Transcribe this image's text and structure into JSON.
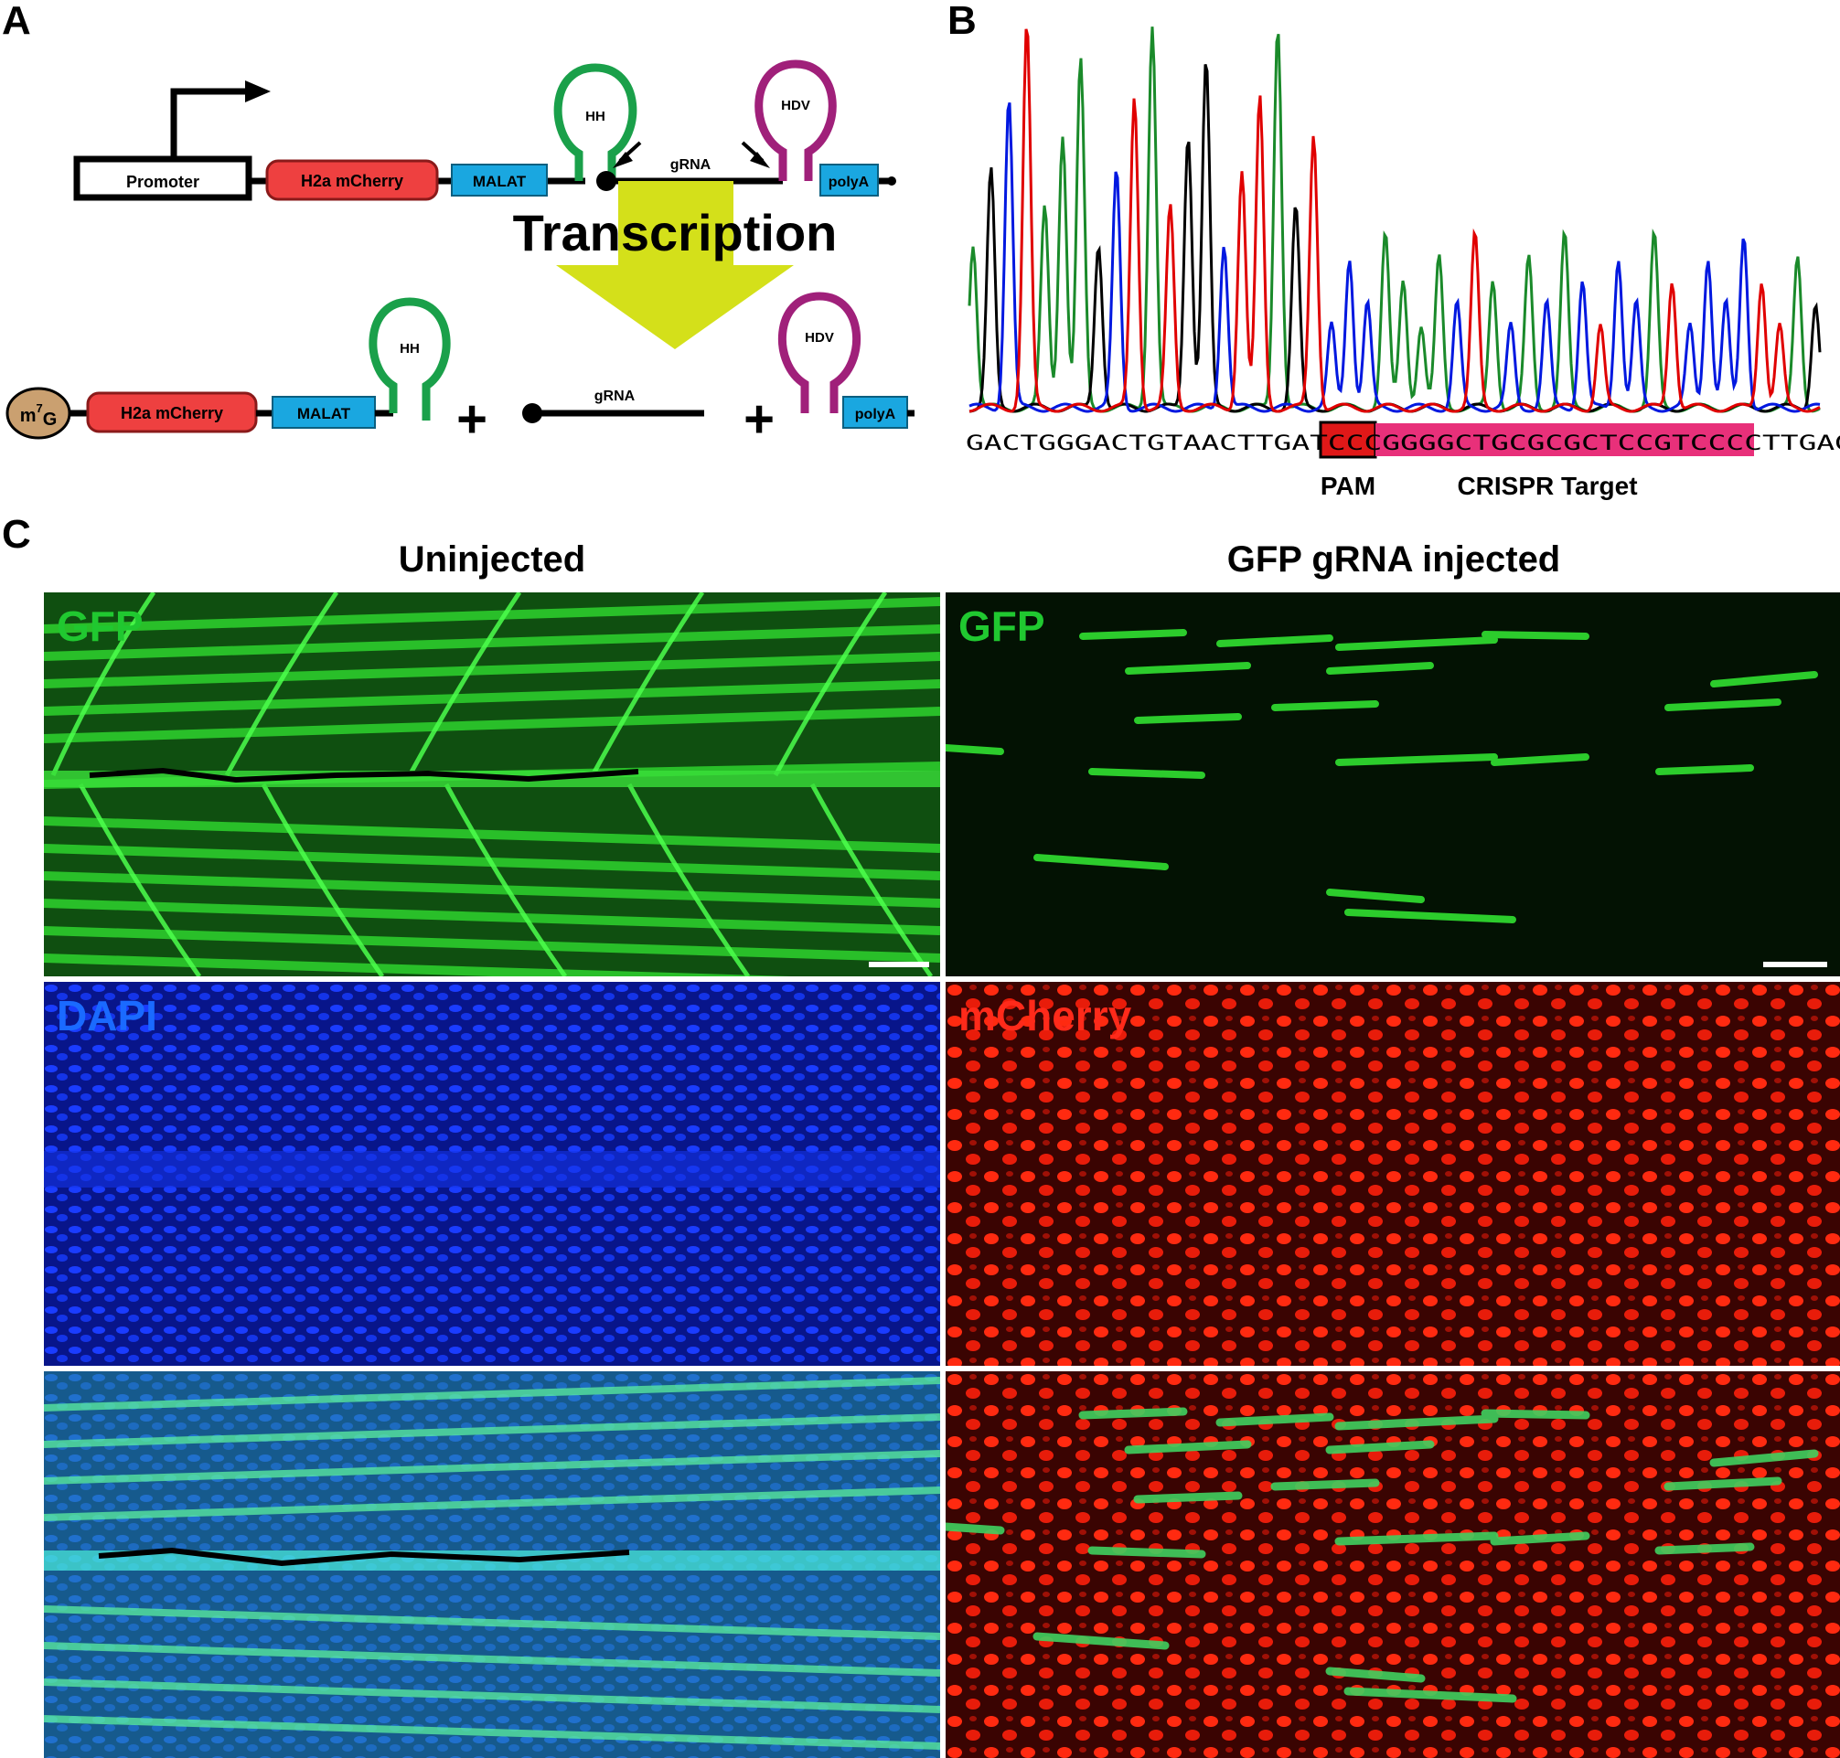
{
  "panels": {
    "a": {
      "letter": "A",
      "construct_top": {
        "promoter": "Promoter",
        "h2a": "H2a mCherry",
        "malat": "MALAT",
        "hh": "HH",
        "grna": "gRNA",
        "hdv": "HDV",
        "polya": "polyA"
      },
      "transcription": "Transcription",
      "products": {
        "cap_base": "m",
        "cap_sup": "7",
        "cap_end": "G",
        "h2a": "H2a mCherry",
        "malat": "MALAT",
        "hh": "HH",
        "plus1": "+",
        "grna": "gRNA",
        "plus2": "+",
        "hdv": "HDV",
        "polya": "polyA"
      },
      "colors": {
        "promoter_fill": "#ffffff",
        "h2a": "#ee4040",
        "malat": "#1aa7e0",
        "hh": "#1aa04a",
        "hdv": "#a0207a",
        "polya": "#1aa7e0",
        "cap": "#caa070",
        "arrow": "#d4e01a"
      }
    },
    "b": {
      "letter": "B",
      "sequence": "GACTGGGACTGTAACTTGATCCCGGGGCTGCGCGCTCCGTCCCCTTGAG",
      "pam_label": "PAM",
      "crispr_label": "CRISPR Target",
      "colors": {
        "g": "#1a8a2a",
        "a": "#000000",
        "c": "#0018e0",
        "t": "#e00000",
        "pam": "#e01818",
        "target": "#e8307a"
      }
    },
    "c": {
      "letter": "C",
      "left_title": "Uninjected",
      "right_title": "GFP gRNA injected",
      "labels": {
        "gfp_left": "GFP",
        "gfp_right": "GFP",
        "dapi": "DAPI",
        "mcherry": "mCherry"
      },
      "colors": {
        "gfp": "#20c830",
        "dapi": "#1030ff",
        "mcherry": "#ff2010"
      }
    }
  }
}
